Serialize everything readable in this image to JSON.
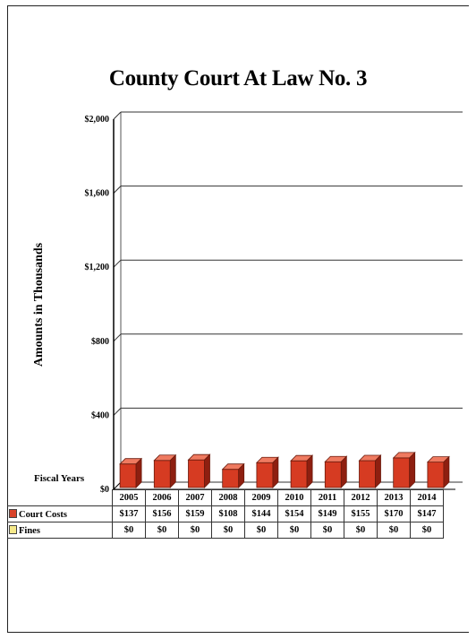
{
  "chart_data": {
    "type": "bar",
    "title": "County Court At Law No. 3",
    "ylabel": "Amounts in Thousands",
    "xlabel": "Fiscal Years",
    "ylim": [
      0,
      2000
    ],
    "y_ticks": [
      "$0",
      "$400",
      "$800",
      "$1,200",
      "$1,600",
      "$2,000"
    ],
    "y_tick_values": [
      0,
      400,
      800,
      1200,
      1600,
      2000
    ],
    "categories": [
      "2005",
      "2006",
      "2007",
      "2008",
      "2009",
      "2010",
      "2011",
      "2012",
      "2013",
      "2014"
    ],
    "series": [
      {
        "name": "Court Costs",
        "color": "#d9432a",
        "values": [
          137,
          156,
          159,
          108,
          144,
          154,
          149,
          155,
          170,
          147
        ],
        "labels": [
          "$137",
          "$156",
          "$159",
          "$108",
          "$144",
          "$154",
          "$149",
          "$155",
          "$170",
          "$147"
        ]
      },
      {
        "name": "Fines",
        "color": "#f5e98a",
        "values": [
          0,
          0,
          0,
          0,
          0,
          0,
          0,
          0,
          0,
          0
        ],
        "labels": [
          "$0",
          "$0",
          "$0",
          "$0",
          "$0",
          "$0",
          "$0",
          "$0",
          "$0",
          "$0"
        ]
      }
    ],
    "grid": true,
    "legend": "data-table"
  }
}
